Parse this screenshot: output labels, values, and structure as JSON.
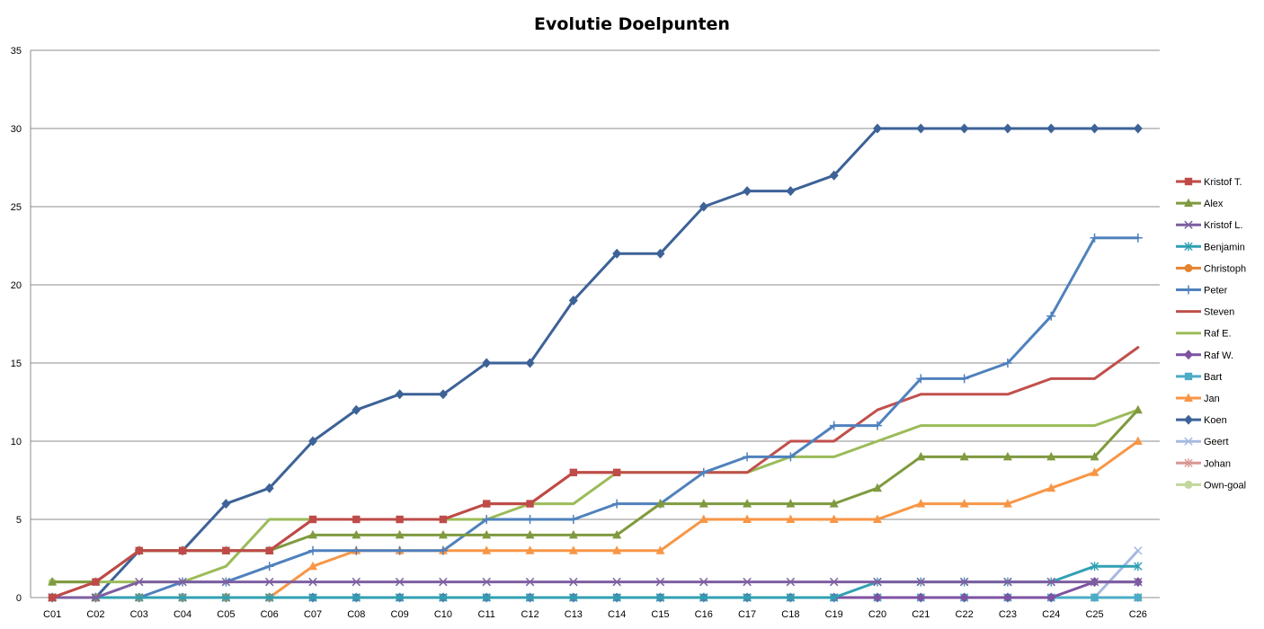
{
  "chart_data": {
    "type": "line",
    "title": "Evolutie Doelpunten",
    "xlabel": "",
    "ylabel": "",
    "ylim": [
      0,
      35
    ],
    "yticks": [
      0,
      5,
      10,
      15,
      20,
      25,
      30,
      35
    ],
    "grid": true,
    "legend_position": "right",
    "categories": [
      "C01",
      "C02",
      "C03",
      "C04",
      "C05",
      "C06",
      "C07",
      "C08",
      "C09",
      "C10",
      "C11",
      "C12",
      "C13",
      "C14",
      "C15",
      "C16",
      "C17",
      "C18",
      "C19",
      "C20",
      "C21",
      "C22",
      "C23",
      "C24",
      "C25",
      "C26"
    ],
    "series": [
      {
        "name": "Kristof T.",
        "color": "#be4b48",
        "marker": "square",
        "values": [
          0,
          1,
          3,
          3,
          3,
          3,
          5,
          5,
          5,
          5,
          6,
          6,
          8,
          8,
          null,
          null,
          null,
          null,
          null,
          null,
          null,
          null,
          null,
          null,
          null,
          null
        ]
      },
      {
        "name": "Alex",
        "color": "#7f9a3f",
        "marker": "triangle",
        "values": [
          1,
          1,
          3,
          3,
          3,
          3,
          4,
          4,
          4,
          4,
          4,
          4,
          4,
          4,
          6,
          6,
          6,
          6,
          6,
          7,
          9,
          9,
          9,
          9,
          9,
          12
        ]
      },
      {
        "name": "Kristof L.",
        "color": "#7d5fa0",
        "marker": "x",
        "values": [
          0,
          0,
          1,
          1,
          1,
          1,
          1,
          1,
          1,
          1,
          1,
          1,
          1,
          1,
          1,
          1,
          1,
          1,
          1,
          1,
          1,
          1,
          1,
          1,
          1,
          1
        ]
      },
      {
        "name": "Benjamin",
        "color": "#31a0b3",
        "marker": "star",
        "values": [
          0,
          0,
          0,
          0,
          0,
          0,
          0,
          0,
          0,
          0,
          0,
          0,
          0,
          0,
          0,
          0,
          0,
          0,
          0,
          1,
          1,
          1,
          1,
          1,
          2,
          2
        ]
      },
      {
        "name": "Christoph",
        "color": "#e48431",
        "marker": "circle",
        "values": [
          0,
          0,
          0,
          0,
          0,
          0,
          null,
          null,
          null,
          null,
          null,
          null,
          null,
          null,
          null,
          null,
          null,
          null,
          null,
          null,
          null,
          null,
          null,
          null,
          null,
          null
        ]
      },
      {
        "name": "Peter",
        "color": "#4f81bd",
        "marker": "plus",
        "values": [
          0,
          0,
          0,
          1,
          1,
          2,
          3,
          3,
          3,
          3,
          5,
          5,
          5,
          6,
          6,
          8,
          9,
          9,
          11,
          11,
          14,
          14,
          15,
          18,
          23,
          23
        ]
      },
      {
        "name": "Steven",
        "color": "#c0504d",
        "marker": "none",
        "values": [
          0,
          1,
          3,
          3,
          3,
          3,
          5,
          5,
          5,
          5,
          6,
          6,
          8,
          8,
          8,
          8,
          8,
          10,
          10,
          12,
          13,
          13,
          13,
          14,
          14,
          16
        ]
      },
      {
        "name": "Raf E.",
        "color": "#9bbb59",
        "marker": "none",
        "values": [
          1,
          1,
          1,
          1,
          2,
          5,
          5,
          5,
          5,
          5,
          5,
          6,
          6,
          8,
          8,
          8,
          8,
          9,
          9,
          10,
          11,
          11,
          11,
          11,
          11,
          12
        ]
      },
      {
        "name": "Raf W.",
        "color": "#7e51a2",
        "marker": "diamond",
        "values": [
          0,
          0,
          0,
          0,
          0,
          0,
          0,
          0,
          0,
          0,
          0,
          0,
          0,
          0,
          0,
          0,
          0,
          0,
          0,
          0,
          0,
          0,
          0,
          0,
          1,
          1
        ]
      },
      {
        "name": "Bart",
        "color": "#4bacc6",
        "marker": "square",
        "values": [
          0,
          0,
          0,
          0,
          0,
          0,
          0,
          0,
          0,
          0,
          0,
          0,
          0,
          0,
          0,
          0,
          0,
          0,
          0,
          0,
          0,
          0,
          0,
          0,
          0,
          0
        ]
      },
      {
        "name": "Jan",
        "color": "#f79646",
        "marker": "triangle",
        "values": [
          0,
          0,
          0,
          0,
          0,
          0,
          2,
          3,
          3,
          3,
          3,
          3,
          3,
          3,
          3,
          5,
          5,
          5,
          5,
          5,
          6,
          6,
          6,
          7,
          8,
          10
        ]
      },
      {
        "name": "Koen",
        "color": "#3d6297",
        "marker": "diamond",
        "values": [
          0,
          0,
          3,
          3,
          6,
          7,
          10,
          12,
          13,
          13,
          15,
          15,
          19,
          22,
          22,
          25,
          26,
          26,
          27,
          30,
          30,
          30,
          30,
          30,
          30,
          30
        ]
      },
      {
        "name": "Geert",
        "color": "#a7b9e0",
        "marker": "x",
        "values": [
          0,
          0,
          0,
          0,
          0,
          0,
          0,
          0,
          0,
          0,
          0,
          0,
          0,
          0,
          0,
          0,
          0,
          0,
          0,
          0,
          0,
          0,
          0,
          0,
          0,
          3
        ]
      },
      {
        "name": "Johan",
        "color": "#d99694",
        "marker": "star",
        "values": [
          0,
          0,
          0,
          0,
          0,
          0,
          0,
          0,
          0,
          0,
          0,
          0,
          0,
          0,
          0,
          0,
          0,
          0,
          0,
          0,
          0,
          0,
          0,
          0,
          0,
          0
        ]
      },
      {
        "name": "Own-goal",
        "color": "#c3d69b",
        "marker": "circle",
        "values": [
          1,
          null,
          null,
          null,
          null,
          null,
          null,
          null,
          null,
          null,
          null,
          null,
          null,
          null,
          null,
          null,
          null,
          null,
          null,
          null,
          null,
          null,
          null,
          null,
          null,
          null
        ]
      }
    ]
  }
}
